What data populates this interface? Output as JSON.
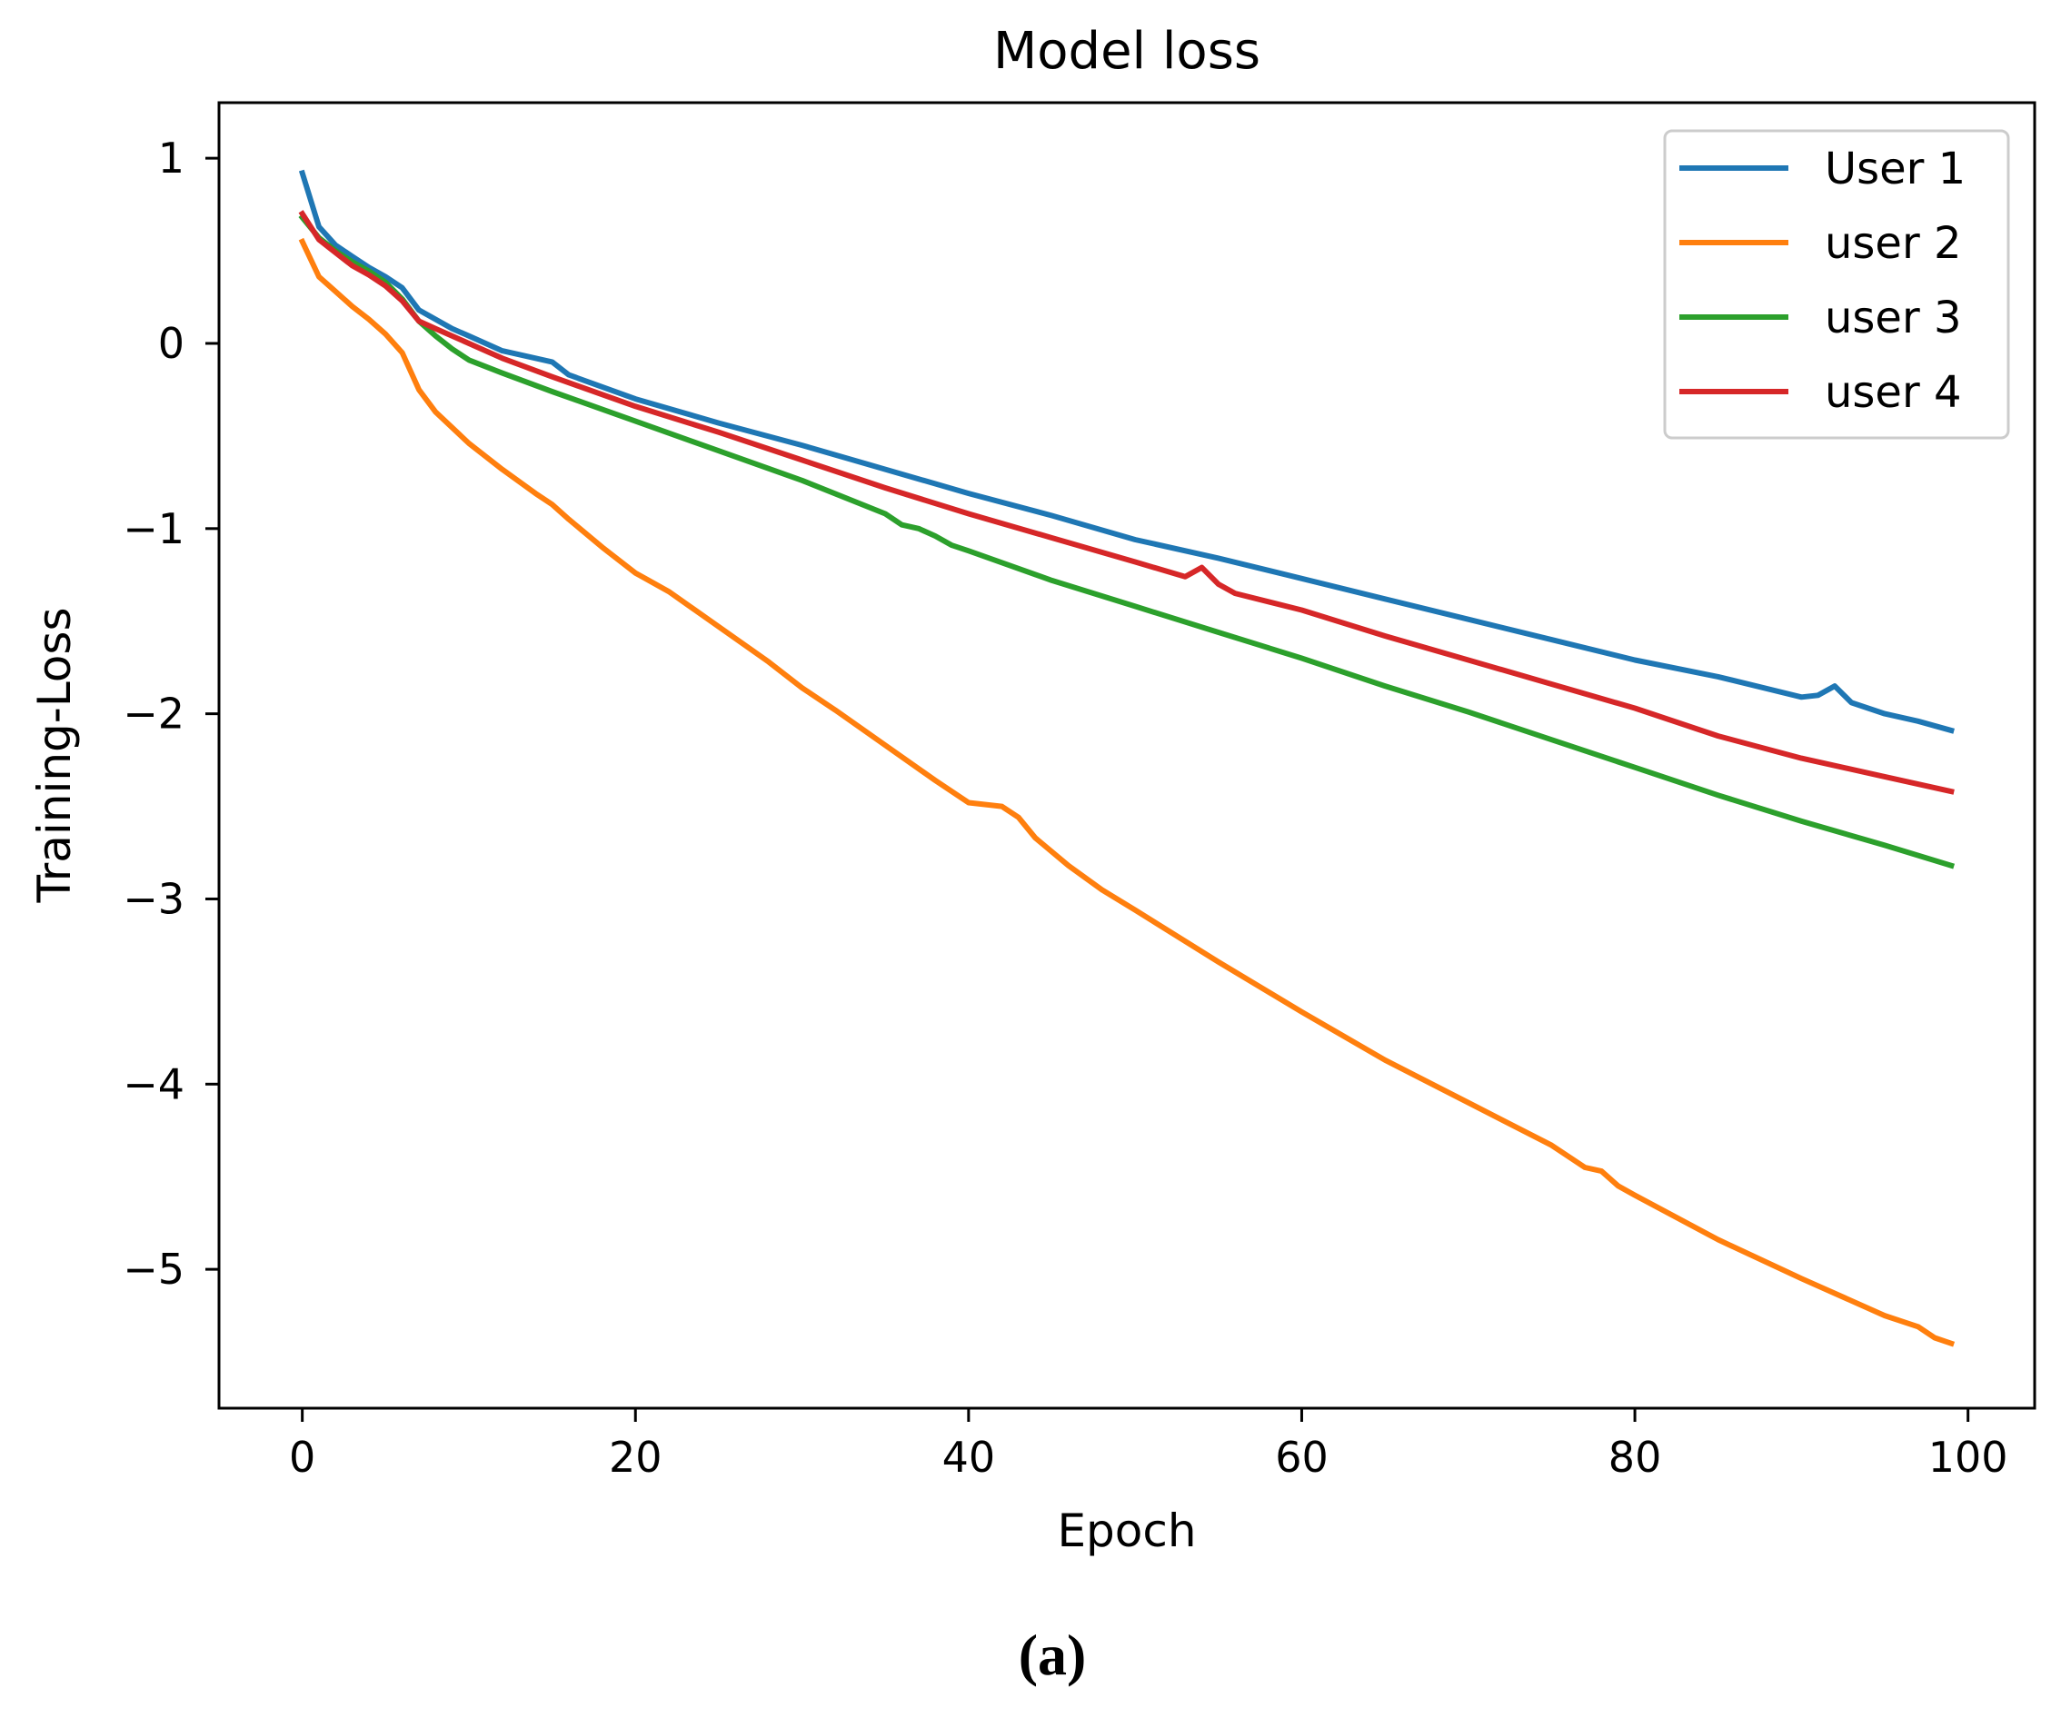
{
  "chart_data": {
    "type": "line",
    "title": "Model loss",
    "xlabel": "Epoch",
    "ylabel": "Training-Loss",
    "xlim": [
      -5,
      104
    ],
    "ylim": [
      -5.75,
      1.3
    ],
    "xticks": [
      0,
      20,
      40,
      60,
      80,
      100
    ],
    "xtick_labels": [
      "0",
      "20",
      "40",
      "60",
      "80",
      "100"
    ],
    "yticks": [
      1,
      0,
      -1,
      -2,
      -3,
      -4,
      -5
    ],
    "ytick_labels": [
      "1",
      "0",
      "−1",
      "−2",
      "−3",
      "−4",
      "−5"
    ],
    "grid": false,
    "legend_position": "top-right",
    "series": [
      {
        "name": "User 1",
        "color": "#1f77b4",
        "points": [
          [
            0,
            0.92
          ],
          [
            1,
            0.63
          ],
          [
            2,
            0.53
          ],
          [
            3,
            0.47
          ],
          [
            4,
            0.41
          ],
          [
            5,
            0.36
          ],
          [
            6,
            0.3
          ],
          [
            7,
            0.18
          ],
          [
            8,
            0.13
          ],
          [
            9,
            0.08
          ],
          [
            10,
            0.04
          ],
          [
            12,
            -0.04
          ],
          [
            14,
            -0.08
          ],
          [
            15,
            -0.1
          ],
          [
            16,
            -0.17
          ],
          [
            20,
            -0.3
          ],
          [
            25,
            -0.43
          ],
          [
            30,
            -0.55
          ],
          [
            35,
            -0.68
          ],
          [
            40,
            -0.81
          ],
          [
            45,
            -0.93
          ],
          [
            50,
            -1.06
          ],
          [
            55,
            -1.16
          ],
          [
            60,
            -1.27
          ],
          [
            65,
            -1.38
          ],
          [
            70,
            -1.49
          ],
          [
            75,
            -1.6
          ],
          [
            80,
            -1.71
          ],
          [
            85,
            -1.8
          ],
          [
            90,
            -1.91
          ],
          [
            91,
            -1.9
          ],
          [
            92,
            -1.85
          ],
          [
            93,
            -1.94
          ],
          [
            95,
            -2.0
          ],
          [
            97,
            -2.04
          ],
          [
            99,
            -2.09
          ]
        ]
      },
      {
        "name": "user 2",
        "color": "#ff7f0e",
        "points": [
          [
            0,
            0.55
          ],
          [
            1,
            0.36
          ],
          [
            2,
            0.28
          ],
          [
            3,
            0.2
          ],
          [
            4,
            0.13
          ],
          [
            5,
            0.05
          ],
          [
            6,
            -0.05
          ],
          [
            7,
            -0.25
          ],
          [
            8,
            -0.37
          ],
          [
            10,
            -0.54
          ],
          [
            12,
            -0.68
          ],
          [
            14,
            -0.81
          ],
          [
            15,
            -0.87
          ],
          [
            16,
            -0.95
          ],
          [
            18,
            -1.1
          ],
          [
            20,
            -1.24
          ],
          [
            22,
            -1.34
          ],
          [
            25,
            -1.53
          ],
          [
            28,
            -1.72
          ],
          [
            30,
            -1.86
          ],
          [
            32,
            -1.98
          ],
          [
            35,
            -2.17
          ],
          [
            38,
            -2.36
          ],
          [
            40,
            -2.48
          ],
          [
            42,
            -2.5
          ],
          [
            43,
            -2.56
          ],
          [
            44,
            -2.67
          ],
          [
            46,
            -2.82
          ],
          [
            48,
            -2.95
          ],
          [
            50,
            -3.06
          ],
          [
            55,
            -3.34
          ],
          [
            60,
            -3.61
          ],
          [
            65,
            -3.87
          ],
          [
            70,
            -4.1
          ],
          [
            75,
            -4.33
          ],
          [
            77,
            -4.45
          ],
          [
            78,
            -4.47
          ],
          [
            79,
            -4.55
          ],
          [
            80,
            -4.6
          ],
          [
            85,
            -4.84
          ],
          [
            90,
            -5.05
          ],
          [
            95,
            -5.25
          ],
          [
            97,
            -5.31
          ],
          [
            98,
            -5.37
          ],
          [
            99,
            -5.4
          ]
        ]
      },
      {
        "name": "user 3",
        "color": "#2ca02c",
        "points": [
          [
            0,
            0.68
          ],
          [
            1,
            0.57
          ],
          [
            2,
            0.5
          ],
          [
            3,
            0.44
          ],
          [
            4,
            0.39
          ],
          [
            5,
            0.33
          ],
          [
            6,
            0.24
          ],
          [
            7,
            0.12
          ],
          [
            8,
            0.04
          ],
          [
            9,
            -0.03
          ],
          [
            10,
            -0.09
          ],
          [
            12,
            -0.16
          ],
          [
            15,
            -0.26
          ],
          [
            20,
            -0.42
          ],
          [
            25,
            -0.58
          ],
          [
            30,
            -0.74
          ],
          [
            35,
            -0.92
          ],
          [
            36,
            -0.98
          ],
          [
            37,
            -1.0
          ],
          [
            38,
            -1.04
          ],
          [
            39,
            -1.09
          ],
          [
            40,
            -1.12
          ],
          [
            45,
            -1.28
          ],
          [
            50,
            -1.42
          ],
          [
            55,
            -1.56
          ],
          [
            60,
            -1.7
          ],
          [
            65,
            -1.85
          ],
          [
            70,
            -1.99
          ],
          [
            75,
            -2.14
          ],
          [
            80,
            -2.29
          ],
          [
            85,
            -2.44
          ],
          [
            90,
            -2.58
          ],
          [
            95,
            -2.71
          ],
          [
            99,
            -2.82
          ]
        ]
      },
      {
        "name": "user 4",
        "color": "#d62728",
        "points": [
          [
            0,
            0.7
          ],
          [
            1,
            0.56
          ],
          [
            2,
            0.49
          ],
          [
            3,
            0.42
          ],
          [
            4,
            0.37
          ],
          [
            5,
            0.31
          ],
          [
            6,
            0.23
          ],
          [
            7,
            0.12
          ],
          [
            8,
            0.08
          ],
          [
            10,
            0.0
          ],
          [
            12,
            -0.08
          ],
          [
            15,
            -0.18
          ],
          [
            20,
            -0.34
          ],
          [
            25,
            -0.48
          ],
          [
            30,
            -0.63
          ],
          [
            35,
            -0.78
          ],
          [
            40,
            -0.92
          ],
          [
            45,
            -1.05
          ],
          [
            50,
            -1.18
          ],
          [
            53,
            -1.26
          ],
          [
            54,
            -1.21
          ],
          [
            55,
            -1.3
          ],
          [
            56,
            -1.35
          ],
          [
            60,
            -1.44
          ],
          [
            65,
            -1.58
          ],
          [
            70,
            -1.71
          ],
          [
            75,
            -1.84
          ],
          [
            80,
            -1.97
          ],
          [
            85,
            -2.12
          ],
          [
            90,
            -2.24
          ],
          [
            95,
            -2.34
          ],
          [
            99,
            -2.42
          ]
        ]
      }
    ]
  },
  "caption": "(a)"
}
